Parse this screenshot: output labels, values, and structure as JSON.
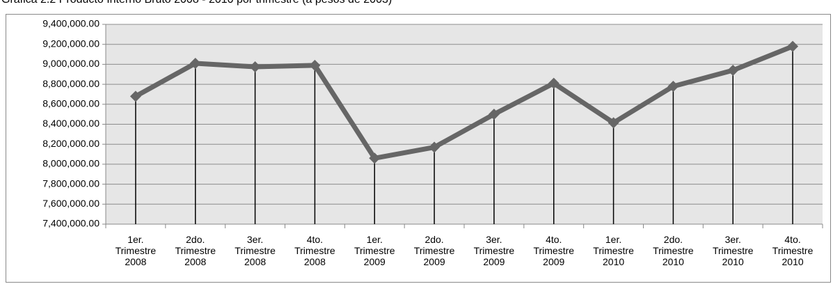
{
  "chart_data": {
    "type": "line",
    "title": "Gráfica 2.2 Producto Interno Bruto 2008 - 2010 por trimestre (a pesos de 2003)",
    "categories": [
      "1er. Trimestre 2008",
      "2do. Trimestre 2008",
      "3er. Trimestre 2008",
      "4to. Trimestre 2008",
      "1er. Trimestre 2009",
      "2do. Trimestre 2009",
      "3er. Trimestre 2009",
      "4to. Trimestre 2009",
      "1er. Trimestre 2010",
      "2do. Trimestre 2010",
      "3er. Trimestre 2010",
      "4to. Trimestre 2010"
    ],
    "series": [
      {
        "name": "PIB",
        "color": "#666666",
        "values": [
          8680000,
          9010000,
          8975000,
          8990000,
          8060000,
          8170000,
          8500000,
          8810000,
          8415000,
          8780000,
          8940000,
          9180000
        ]
      }
    ],
    "ylim": [
      7400000,
      9400000
    ],
    "yticks": [
      {
        "value": 7400000,
        "label": "7,400,000.00"
      },
      {
        "value": 7600000,
        "label": "7,600,000.00"
      },
      {
        "value": 7800000,
        "label": "7,800,000.00"
      },
      {
        "value": 8000000,
        "label": "8,000,000.00"
      },
      {
        "value": 8200000,
        "label": "8,200,000.00"
      },
      {
        "value": 8400000,
        "label": "8,400,000.00"
      },
      {
        "value": 8600000,
        "label": "8,600,000.00"
      },
      {
        "value": 8800000,
        "label": "8,800,000.00"
      },
      {
        "value": 9000000,
        "label": "9,000,000.00"
      },
      {
        "value": 9200000,
        "label": "9,200,000.00"
      },
      {
        "value": 9400000,
        "label": "9,400,000.00"
      }
    ],
    "grid": true,
    "drop_lines": true
  }
}
